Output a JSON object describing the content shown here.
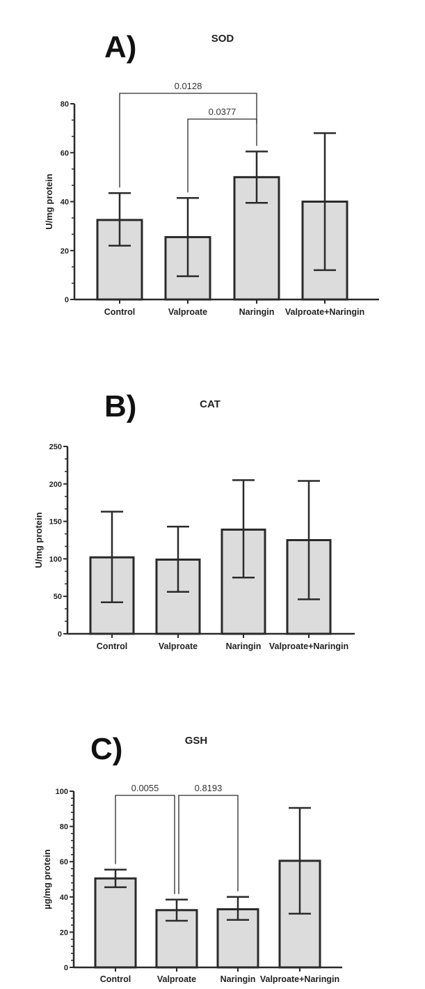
{
  "colors": {
    "bar_fill": "#dcdcdc",
    "stroke": "#2a2a2a"
  },
  "chart_data": [
    {
      "type": "bar",
      "panel": "A)",
      "title": "SOD",
      "ylabel": "U/mg protein",
      "ylim": [
        0,
        80
      ],
      "yticks": [
        0,
        20,
        40,
        60,
        80
      ],
      "categories": [
        "Control",
        "Valproate",
        "Naringin",
        "Valproate+Naringin"
      ],
      "values": [
        32.5,
        25.5,
        50,
        40
      ],
      "error_low": [
        22,
        9.5,
        39.5,
        12
      ],
      "error_high": [
        43.5,
        41.5,
        60.5,
        68
      ],
      "comparisons": [
        {
          "from": "Control",
          "to": "Naringin",
          "p": "0.0128"
        },
        {
          "from": "Valproate",
          "to": "Naringin",
          "p": "0.0377"
        }
      ]
    },
    {
      "type": "bar",
      "panel": "B)",
      "title": "CAT",
      "ylabel": "U/mg protein",
      "ylim": [
        0,
        250
      ],
      "yticks": [
        0,
        50,
        100,
        150,
        200,
        250
      ],
      "categories": [
        "Control",
        "Valproate",
        "Naringin",
        "Valproate+Naringin"
      ],
      "values": [
        102,
        99,
        139,
        125
      ],
      "error_low": [
        42,
        56,
        75,
        46
      ],
      "error_high": [
        163,
        143,
        205,
        204
      ],
      "comparisons": []
    },
    {
      "type": "bar",
      "panel": "C)",
      "title": "GSH",
      "ylabel": "µg/mg protein",
      "ylim": [
        0,
        100
      ],
      "yticks": [
        0,
        20,
        40,
        60,
        80,
        100
      ],
      "categories": [
        "Control",
        "Valproate",
        "Naringin",
        "Valproate+Naringin"
      ],
      "values": [
        50.5,
        32.5,
        33,
        60.5
      ],
      "error_low": [
        45.5,
        26.5,
        27,
        30.5
      ],
      "error_high": [
        55.5,
        38.5,
        40,
        90.5
      ],
      "comparisons": [
        {
          "from": "Control",
          "to": "Valproate",
          "p": "0.0055"
        },
        {
          "from": "Valproate",
          "to": "Naringin",
          "p": "0.8193"
        }
      ]
    }
  ]
}
